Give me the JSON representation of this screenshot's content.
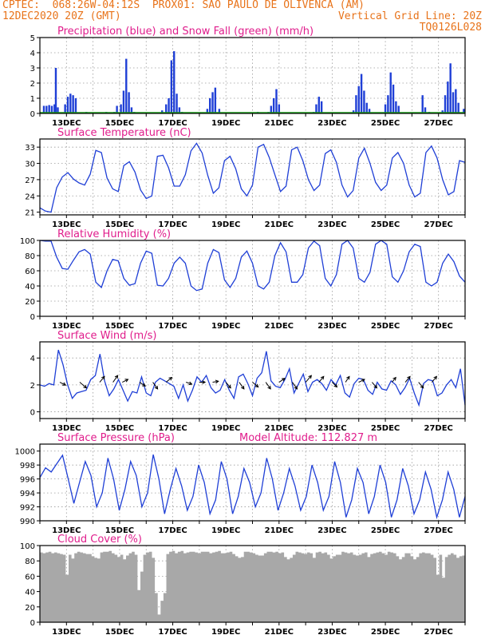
{
  "header": {
    "line1": "CPTEC:  068:26W-04:12S  PROX01: SAO PAULO DE OLIVENCA (AM)",
    "line2_left": "12DEC2020 20Z (GMT)",
    "line2_right": "Vertical Grid Line: 20Z",
    "line3_right": "TQ0126L028"
  },
  "x_labels": [
    "13DEC",
    "15DEC",
    "17DEC",
    "19DEC",
    "21DEC",
    "23DEC",
    "25DEC",
    "27DEC"
  ],
  "colors": {
    "line": "#1f3fd6",
    "snow": "#1aa31a",
    "title": "#e01d8c",
    "header": "#e8731a",
    "cloud": "#a8a8a8",
    "grid": "#9a9a9a"
  },
  "chart_data": [
    {
      "type": "bar",
      "title": "Precipitation (blue) and Snow Fall (green) (mm/h)",
      "ylim": [
        0,
        5
      ],
      "yticks": [
        0,
        1,
        2,
        3,
        4,
        5
      ],
      "series": [
        {
          "name": "Precipitation",
          "color": "#1f3fd6",
          "points": [
            [
              0.3,
              0.5
            ],
            [
              0.5,
              0.5
            ],
            [
              0.7,
              0.55
            ],
            [
              0.9,
              0.5
            ],
            [
              1.1,
              0.6
            ],
            [
              1.2,
              3.0
            ],
            [
              1.35,
              0.4
            ],
            [
              1.9,
              0.6
            ],
            [
              2.1,
              1.1
            ],
            [
              2.3,
              1.3
            ],
            [
              2.5,
              1.2
            ],
            [
              2.7,
              1.0
            ],
            [
              3.5,
              0.1
            ],
            [
              4.1,
              0.05
            ],
            [
              5.0,
              0.1
            ],
            [
              5.6,
              0.1
            ],
            [
              5.8,
              0.5
            ],
            [
              6.1,
              0.6
            ],
            [
              6.3,
              1.5
            ],
            [
              6.5,
              3.6
            ],
            [
              6.7,
              1.4
            ],
            [
              6.9,
              0.4
            ],
            [
              7.1,
              0.1
            ],
            [
              8.4,
              0.05
            ],
            [
              9.2,
              0.2
            ],
            [
              9.5,
              0.6
            ],
            [
              9.7,
              1.0
            ],
            [
              9.9,
              3.5
            ],
            [
              10.1,
              4.1
            ],
            [
              10.3,
              1.3
            ],
            [
              10.5,
              0.4
            ],
            [
              10.7,
              0.1
            ],
            [
              11.5,
              0.05
            ],
            [
              12.6,
              0.3
            ],
            [
              12.8,
              1.0
            ],
            [
              13.0,
              1.4
            ],
            [
              13.2,
              1.7
            ],
            [
              13.5,
              0.3
            ],
            [
              14.4,
              0.05
            ],
            [
              16.4,
              0.1
            ],
            [
              17.2,
              0.1
            ],
            [
              17.4,
              0.5
            ],
            [
              17.6,
              1.0
            ],
            [
              17.8,
              1.6
            ],
            [
              18.0,
              0.6
            ],
            [
              19.5,
              0.05
            ],
            [
              20.6,
              0.1
            ],
            [
              20.8,
              0.6
            ],
            [
              21.0,
              1.1
            ],
            [
              21.2,
              0.8
            ],
            [
              22.5,
              0.05
            ],
            [
              23.6,
              0.2
            ],
            [
              23.8,
              1.2
            ],
            [
              24.0,
              1.8
            ],
            [
              24.2,
              2.6
            ],
            [
              24.4,
              1.5
            ],
            [
              24.6,
              0.7
            ],
            [
              24.8,
              0.3
            ],
            [
              26.0,
              0.6
            ],
            [
              26.2,
              1.2
            ],
            [
              26.4,
              2.7
            ],
            [
              26.6,
              1.9
            ],
            [
              26.8,
              0.8
            ],
            [
              27.0,
              0.5
            ],
            [
              28.3,
              0.05
            ],
            [
              28.8,
              1.2
            ],
            [
              29.0,
              0.4
            ],
            [
              29.3,
              0.1
            ],
            [
              30.3,
              0.2
            ],
            [
              30.5,
              1.2
            ],
            [
              30.7,
              2.1
            ],
            [
              30.9,
              3.3
            ],
            [
              31.1,
              1.4
            ],
            [
              31.3,
              1.6
            ],
            [
              31.5,
              0.7
            ],
            [
              31.9,
              0.3
            ]
          ]
        },
        {
          "name": "Snow Fall",
          "color": "#1aa31a",
          "points": [
            [
              0.0,
              0.05
            ],
            [
              32.0,
              0.05
            ]
          ]
        }
      ]
    },
    {
      "type": "line",
      "title": "Surface Temperature (nC)",
      "ylim": [
        20.5,
        34.5
      ],
      "yticks": [
        21,
        24,
        27,
        30,
        33
      ],
      "values": [
        21.8,
        21.2,
        21.0,
        25.5,
        27.5,
        28.3,
        27.1,
        26.4,
        26.0,
        28.0,
        32.4,
        32.0,
        27.3,
        25.3,
        24.8,
        29.6,
        30.3,
        28.4,
        25.1,
        23.5,
        24.0,
        31.3,
        31.5,
        29.2,
        25.8,
        25.8,
        27.9,
        32.3,
        33.7,
        31.9,
        27.8,
        24.5,
        25.5,
        30.5,
        31.3,
        29.0,
        25.3,
        24.0,
        26.0,
        33.0,
        33.5,
        31.1,
        27.9,
        24.8,
        25.8,
        32.5,
        33.0,
        30.5,
        27.0,
        25.0,
        26.0,
        31.8,
        32.5,
        30.2,
        26.0,
        23.8,
        25.0,
        31.0,
        32.8,
        30.0,
        26.5,
        25.0,
        26.0,
        31.0,
        32.0,
        30.0,
        26.0,
        23.8,
        24.5,
        32.0,
        33.2,
        31.0,
        27.0,
        24.2,
        24.8,
        30.5,
        30.2
      ]
    },
    {
      "type": "line",
      "title": "Relative Humidity (%)",
      "ylim": [
        0,
        100
      ],
      "yticks": [
        0,
        20,
        40,
        60,
        80,
        100
      ],
      "values": [
        100,
        99,
        99,
        78,
        63,
        62,
        74,
        85,
        88,
        82,
        45,
        38,
        60,
        75,
        73,
        50,
        41,
        43,
        70,
        86,
        83,
        41,
        40,
        50,
        70,
        78,
        70,
        40,
        34,
        36,
        70,
        88,
        84,
        48,
        38,
        50,
        78,
        86,
        70,
        40,
        36,
        45,
        80,
        97,
        85,
        45,
        45,
        55,
        90,
        99,
        93,
        50,
        40,
        55,
        95,
        100,
        90,
        50,
        45,
        58,
        95,
        100,
        95,
        52,
        45,
        60,
        85,
        95,
        92,
        45,
        40,
        45,
        70,
        82,
        72,
        53,
        45
      ]
    },
    {
      "type": "line",
      "title": "Surface Wind (m/s)",
      "ylim": [
        -0.5,
        5.2
      ],
      "yticks": [
        0,
        2,
        4
      ],
      "values": [
        2.0,
        1.9,
        2.1,
        2.0,
        4.6,
        3.5,
        2.0,
        1.0,
        1.4,
        1.5,
        1.6,
        2.4,
        2.7,
        4.3,
        2.3,
        1.2,
        1.7,
        2.4,
        1.6,
        0.8,
        1.5,
        1.4,
        2.6,
        1.4,
        1.2,
        2.2,
        2.5,
        2.3,
        2.1,
        1.9,
        1.0,
        2.0,
        0.8,
        1.6,
        2.6,
        2.2,
        2.7,
        1.8,
        1.4,
        1.6,
        2.4,
        1.6,
        1.0,
        2.6,
        2.8,
        2.1,
        1.2,
        2.5,
        2.9,
        4.5,
        2.3,
        1.9,
        1.8,
        2.4,
        3.2,
        1.4,
        2.1,
        2.8,
        1.5,
        2.2,
        2.4,
        2.1,
        1.6,
        2.4,
        2.0,
        2.7,
        1.4,
        1.1,
        2.1,
        2.5,
        2.4,
        1.6,
        1.3,
        2.2,
        1.7,
        1.6,
        2.3,
        2.0,
        1.3,
        1.8,
        2.5,
        1.4,
        0.5,
        2.1,
        2.4,
        2.3,
        1.2,
        1.4,
        2.0,
        2.4,
        1.8,
        3.2,
        0.5
      ],
      "arrows": [
        [
          1.5,
          0.6,
          -0.3
        ],
        [
          3.0,
          0.7,
          -0.6
        ],
        [
          4.5,
          0.5,
          0.6
        ],
        [
          5.5,
          0.5,
          0.7
        ],
        [
          6.2,
          0.6,
          0.3
        ],
        [
          7.5,
          0.6,
          -0.4
        ],
        [
          8.5,
          0.5,
          -0.7
        ],
        [
          9.5,
          0.6,
          0.5
        ],
        [
          11.0,
          0.6,
          -0.2
        ],
        [
          12.0,
          0.6,
          0.0
        ],
        [
          13.0,
          0.6,
          0.1
        ],
        [
          14.0,
          0.5,
          -0.6
        ],
        [
          15.0,
          0.5,
          -0.7
        ],
        [
          16.0,
          0.6,
          -0.5
        ],
        [
          17.0,
          0.5,
          -0.7
        ],
        [
          18.0,
          0.6,
          0.4
        ],
        [
          19.0,
          0.5,
          -0.7
        ],
        [
          20.0,
          0.6,
          0.7
        ],
        [
          21.0,
          0.5,
          0.6
        ],
        [
          22.0,
          0.5,
          -0.5
        ],
        [
          23.0,
          0.4,
          0.6
        ],
        [
          24.0,
          0.6,
          0.3
        ],
        [
          25.0,
          0.5,
          -0.6
        ],
        [
          26.5,
          0.4,
          0.5
        ],
        [
          27.5,
          0.5,
          0.6
        ],
        [
          28.5,
          0.5,
          -0.6
        ],
        [
          29.5,
          0.5,
          0.6
        ]
      ]
    },
    {
      "type": "line",
      "title": "Surface Pressure (hPa)",
      "annotation": "Model Altitude: 112.827 m",
      "ylim": [
        990,
        1001
      ],
      "yticks": [
        990,
        992,
        994,
        996,
        998,
        1000
      ],
      "values": [
        996.2,
        997.6,
        997.0,
        998.2,
        999.4,
        996.0,
        992.5,
        995.5,
        998.5,
        996.5,
        992.0,
        994.0,
        999.0,
        996.0,
        991.5,
        994.5,
        998.5,
        996.5,
        992.0,
        994.0,
        999.5,
        996.0,
        991.0,
        994.5,
        997.5,
        995.0,
        991.5,
        993.5,
        998.0,
        995.5,
        991.0,
        993.0,
        998.5,
        996.0,
        991.0,
        993.5,
        997.5,
        995.5,
        992.0,
        994.0,
        999.0,
        996.0,
        991.5,
        994.0,
        997.5,
        995.0,
        991.5,
        993.5,
        998.0,
        995.5,
        991.5,
        993.5,
        998.5,
        995.5,
        990.5,
        993.0,
        997.5,
        995.5,
        991.0,
        993.5,
        998.0,
        995.5,
        990.5,
        993.0,
        997.5,
        995.0,
        991.0,
        993.0,
        997.0,
        994.5,
        990.5,
        993.0,
        997.0,
        994.5,
        990.5,
        993.5
      ]
    },
    {
      "type": "area",
      "title": "Cloud Cover (%)",
      "ylim": [
        0,
        100
      ],
      "yticks": [
        0,
        20,
        40,
        60,
        80,
        100
      ],
      "values": [
        91,
        90,
        91,
        92,
        90,
        91,
        90,
        89,
        88,
        62,
        88,
        83,
        90,
        92,
        91,
        90,
        89,
        89,
        86,
        84,
        83,
        91,
        92,
        92,
        93,
        90,
        88,
        85,
        88,
        82,
        87,
        90,
        92,
        88,
        42,
        66,
        88,
        91,
        92,
        84,
        38,
        10,
        28,
        38,
        89,
        92,
        93,
        90,
        92,
        93,
        90,
        91,
        92,
        92,
        91,
        90,
        92,
        92,
        92,
        90,
        91,
        92,
        93,
        90,
        90,
        91,
        92,
        89,
        86,
        84,
        85,
        92,
        92,
        91,
        90,
        88,
        87,
        87,
        90,
        92,
        92,
        91,
        92,
        90,
        91,
        85,
        82,
        84,
        88,
        92,
        91,
        90,
        89,
        91,
        90,
        84,
        91,
        92,
        90,
        91,
        88,
        83,
        86,
        88,
        88,
        92,
        91,
        90,
        91,
        88,
        87,
        88,
        90,
        91,
        85,
        89,
        90,
        91,
        92,
        90,
        88,
        92,
        91,
        90,
        86,
        82,
        85,
        90,
        90,
        86,
        82,
        85,
        90,
        91,
        90,
        90,
        88,
        84,
        62,
        88,
        58,
        85,
        88,
        90,
        88,
        84,
        86,
        87
      ]
    }
  ]
}
